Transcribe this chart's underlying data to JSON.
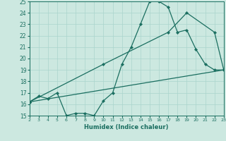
{
  "xlabel": "Humidex (Indice chaleur)",
  "bg_color": "#cce8e0",
  "line_color": "#1a6e60",
  "grid_color": "#aad4cc",
  "xlim": [
    2,
    23
  ],
  "ylim": [
    15,
    25
  ],
  "xticks": [
    2,
    3,
    4,
    5,
    6,
    7,
    8,
    9,
    10,
    11,
    12,
    13,
    14,
    15,
    16,
    17,
    18,
    19,
    20,
    21,
    22,
    23
  ],
  "yticks": [
    15,
    16,
    17,
    18,
    19,
    20,
    21,
    22,
    23,
    24,
    25
  ],
  "line1_x": [
    2,
    3,
    4,
    5,
    6,
    7,
    8,
    9,
    10,
    11,
    12,
    13,
    14,
    15,
    16,
    17,
    18,
    19,
    20,
    21,
    22,
    23
  ],
  "line1_y": [
    16.2,
    16.7,
    16.5,
    17.0,
    15.0,
    15.2,
    15.2,
    15.0,
    16.3,
    17.0,
    19.5,
    21.0,
    23.0,
    25.0,
    25.0,
    24.5,
    22.3,
    22.5,
    20.8,
    19.5,
    19.0,
    19.0
  ],
  "line2_x": [
    2,
    23
  ],
  "line2_y": [
    16.2,
    19.0
  ],
  "line3_x": [
    2,
    10,
    17,
    19,
    22,
    23
  ],
  "line3_y": [
    16.2,
    19.5,
    22.3,
    24.0,
    22.3,
    19.0
  ]
}
